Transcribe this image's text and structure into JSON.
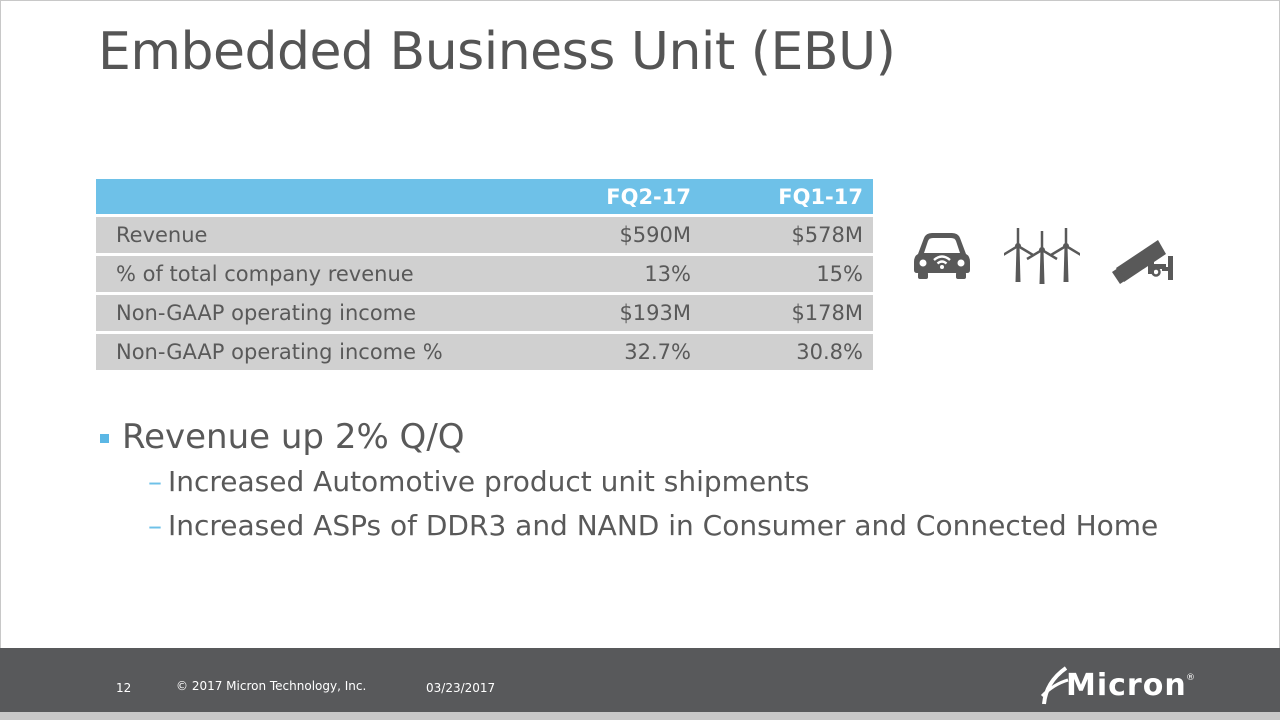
{
  "slide": {
    "title": "Embedded Business Unit (EBU)"
  },
  "table": {
    "headers": [
      "",
      "FQ2-17",
      "FQ1-17"
    ],
    "rows": [
      [
        "Revenue",
        "$590M",
        "$578M"
      ],
      [
        "% of total company revenue",
        "13%",
        "15%"
      ],
      [
        "Non-GAAP operating income",
        "$193M",
        "$178M"
      ],
      [
        "Non-GAAP operating income %",
        "32.7%",
        "30.8%"
      ]
    ]
  },
  "icons": [
    "connected-car-icon",
    "wind-turbines-icon",
    "security-camera-icon"
  ],
  "bullets": {
    "main": "Revenue up 2% Q/Q",
    "dash": "–",
    "sub": [
      "Increased Automotive product unit shipments",
      "Increased ASPs of DDR3 and NAND in Consumer and Connected Home"
    ]
  },
  "footer": {
    "page_number": "12",
    "copyright": "© 2017 Micron Technology, Inc.",
    "date": "03/23/2017",
    "logo_text": "Micron"
  },
  "colors": {
    "header_blue": "#6ec1e8",
    "row_gray": "#d0d0d0",
    "footer_gray": "#58595b",
    "text_gray": "#595959"
  }
}
